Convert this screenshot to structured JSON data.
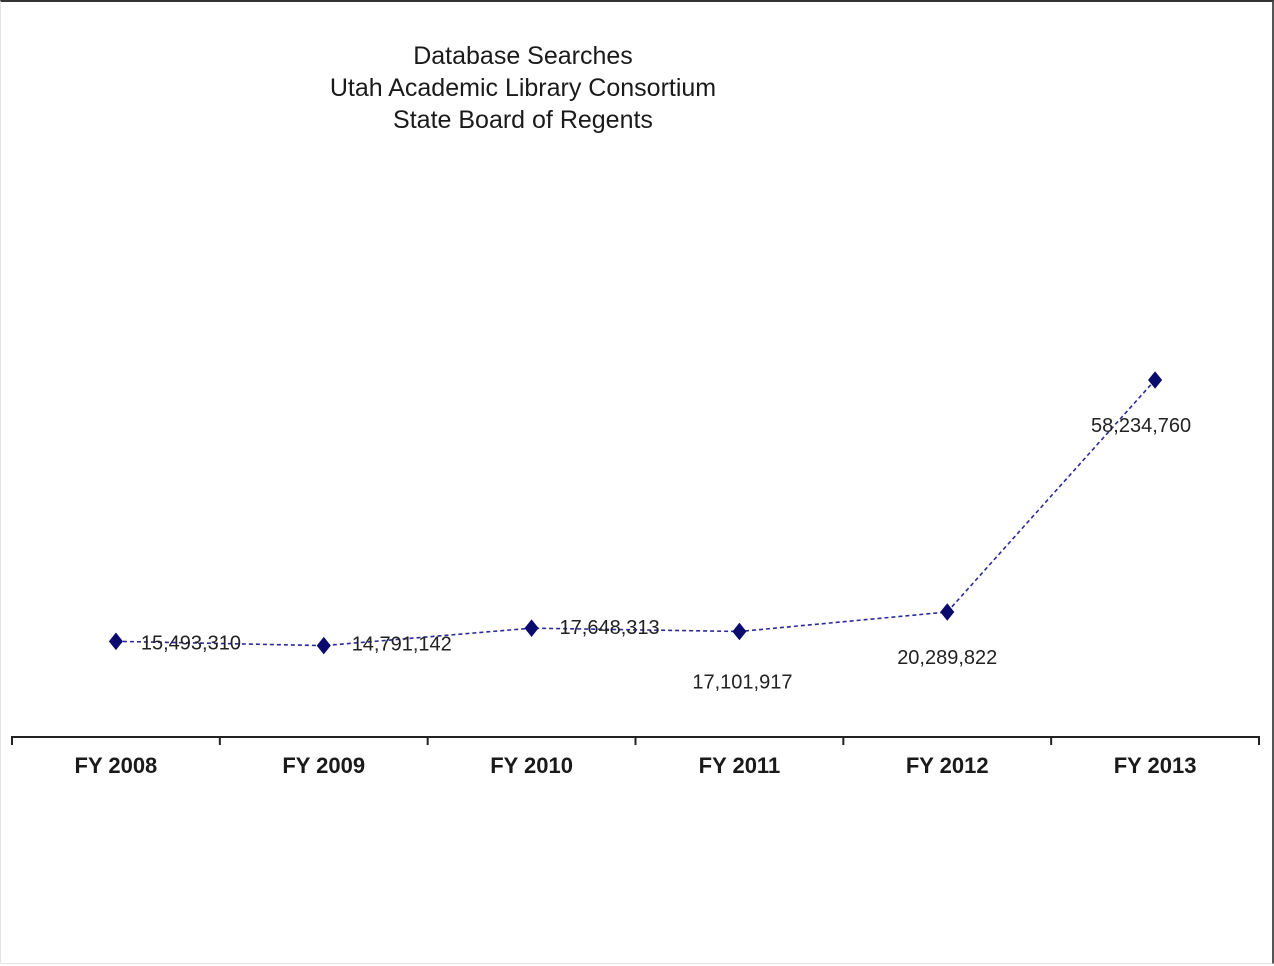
{
  "chart_data": {
    "type": "line",
    "title": [
      "Database Searches",
      "Utah Academic  Library Consortium",
      "State Board of Regents"
    ],
    "categories": [
      "FY 2008",
      "FY 2009",
      "FY 2010",
      "FY 2011",
      "FY 2012",
      "FY 2013"
    ],
    "series": [
      {
        "values": [
          15493310,
          14791142,
          17648313,
          17101917,
          20289822,
          58234760
        ],
        "labels": [
          "15,493,310",
          "14,791,142",
          "17,648,313",
          "17,101,917",
          "20,289,822",
          "58,234,760"
        ],
        "color": "#0b0b6e",
        "line_style": "dashed",
        "marker": "diamond"
      }
    ],
    "xlabel": "",
    "ylabel": "",
    "y_axis_visible": false,
    "grid": false,
    "legend": "none"
  }
}
